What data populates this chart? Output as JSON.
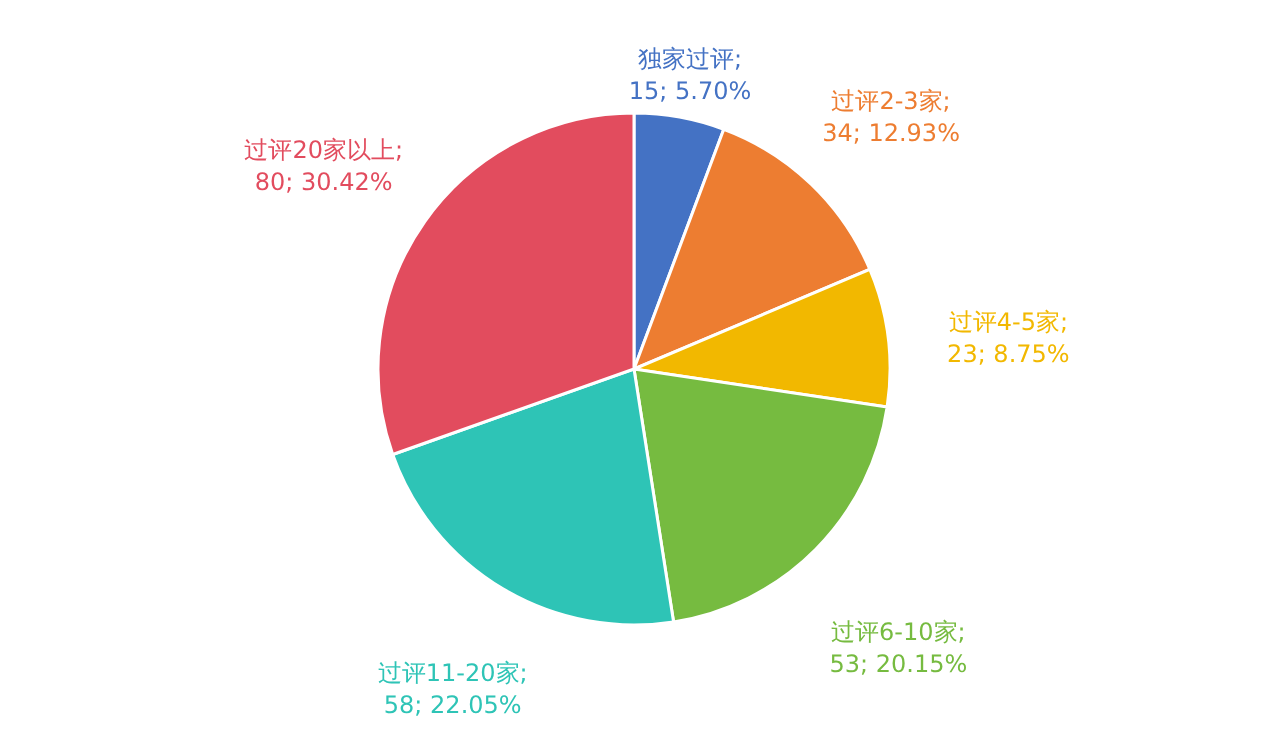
{
  "chart_data": {
    "type": "pie",
    "categories": [
      "独家过评",
      "过评2-3家",
      "过评4-5家",
      "过评6-10家",
      "过评11-20家",
      "过评20家以上"
    ],
    "values": [
      15,
      34,
      23,
      53,
      58,
      80
    ],
    "colors": [
      "#4472c4",
      "#ed7d31",
      "#f2b800",
      "#76bb40",
      "#2ec4b6",
      "#e24c5e"
    ],
    "value_labels": [
      "; 15; 5.70%",
      "; 34; 12.93%",
      "; 23; 8.75%",
      "; 53; 20.15%",
      "; 58; 22.05%",
      "; 80; 30.42%"
    ]
  }
}
